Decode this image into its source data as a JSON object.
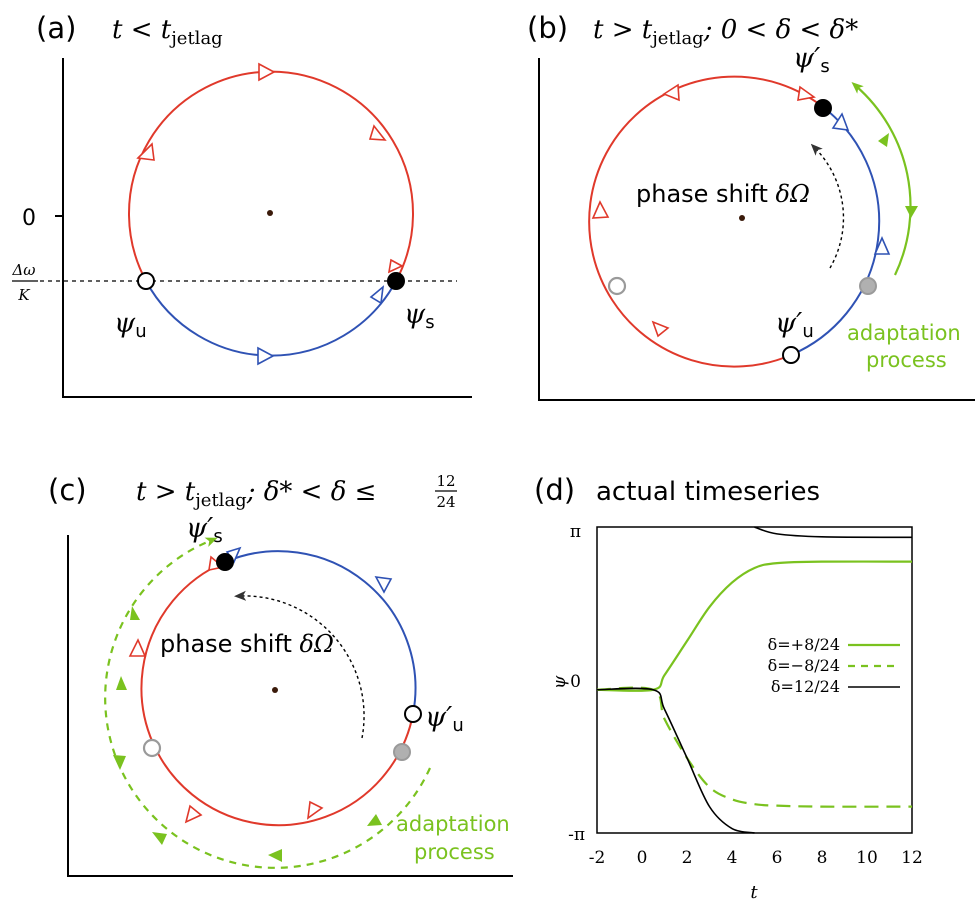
{
  "panel_a": {
    "letter": "(a)",
    "condition": "t < t",
    "condition_sub": "jetlag",
    "y_zero": "0",
    "delta_omega_num": "Δω",
    "delta_omega_den": "K",
    "psi_u": "ψ",
    "psi_u_sub": "u",
    "psi_s": "ψ",
    "psi_s_sub": "s"
  },
  "panel_b": {
    "letter": "(b)",
    "condition_a": "t > t",
    "condition_sub": "jetlag",
    "condition_b": "; 0 < δ < δ*",
    "phase_shift": "phase shift",
    "delta_omega": "δΩ",
    "psi_s": "ψ′",
    "psi_s_sub": "s",
    "psi_u": "ψ′",
    "psi_u_sub": "u",
    "adaptation": "adaptation",
    "process": "process"
  },
  "panel_c": {
    "letter": "(c)",
    "condition_a": "t > t",
    "condition_sub": "jetlag",
    "condition_b": "; δ* < δ ≤",
    "frac_num": "12",
    "frac_den": "24",
    "phase_shift": "phase shift",
    "delta_omega": "δΩ",
    "psi_s": "ψ′",
    "psi_s_sub": "s",
    "psi_u": "ψ′",
    "psi_u_sub": "u",
    "adaptation": "adaptation",
    "process": "process"
  },
  "panel_d": {
    "letter": "(d)",
    "title": "actual timeseries",
    "ylabel": "ψ",
    "xlabel": "t",
    "ytick_top": "π",
    "ytick_mid": "0",
    "ytick_bot": "-π",
    "xticks": [
      "-2",
      "0",
      "2",
      "4",
      "6",
      "8",
      "10",
      "12"
    ],
    "legend": [
      "δ=+8/24",
      "δ=−8/24",
      "δ=12/24"
    ]
  },
  "colors": {
    "red": "#e0392b",
    "blue": "#2f52b4",
    "green": "#7ac21f",
    "gray": "#9a9a9a",
    "black": "#000000"
  },
  "chart_data": {
    "type": "line",
    "xlim": [
      -2,
      12
    ],
    "ylim": [
      -3.14159,
      3.14159
    ],
    "series": [
      {
        "name": "δ=+8/24",
        "style": "solid green",
        "x": [
          -2,
          0.5,
          1,
          2,
          3,
          4,
          5,
          6,
          8,
          12
        ],
        "y": [
          -0.2,
          -0.2,
          0.1,
          0.8,
          1.5,
          2.0,
          2.3,
          2.4,
          2.43,
          2.43
        ]
      },
      {
        "name": "δ=−8/24",
        "style": "dashed green",
        "x": [
          -2,
          0.5,
          1,
          2,
          3,
          4,
          5,
          6,
          8,
          12
        ],
        "y": [
          -0.2,
          -0.2,
          -0.8,
          -1.6,
          -2.2,
          -2.45,
          -2.55,
          -2.58,
          -2.6,
          -2.6
        ]
      },
      {
        "name": "δ=12/24",
        "style": "solid black",
        "x": [
          -2,
          0.5,
          1,
          2,
          3,
          4,
          5
        ],
        "y": [
          -0.2,
          -0.2,
          -0.6,
          -1.6,
          -2.6,
          -3.05,
          -3.14
        ]
      },
      {
        "name": "δ=12/24 (wrapped)",
        "style": "solid black",
        "x": [
          5,
          6,
          8,
          12
        ],
        "y": [
          3.14,
          3.0,
          2.94,
          2.93
        ]
      }
    ]
  }
}
